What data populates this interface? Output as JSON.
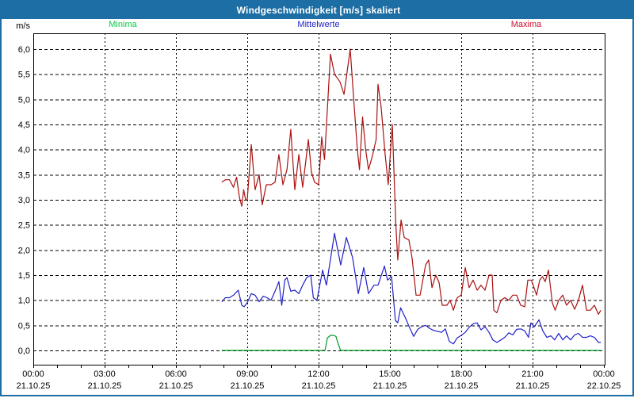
{
  "window": {
    "title": "Windgeschwindigkeit [m/s] skaliert",
    "titlebar_color": "#1c6ea4",
    "border_color": "#1c6ea4",
    "background_color": "#ffffff"
  },
  "chart_data": {
    "type": "line",
    "title": "Windgeschwindigkeit [m/s] skaliert",
    "ylabel": "m/s",
    "ylim": [
      0,
      6
    ],
    "ytick_step": 0.5,
    "ytick_values": [
      0,
      0.5,
      1,
      1.5,
      2,
      2.5,
      3,
      3.5,
      4,
      4.5,
      5,
      5.5,
      6
    ],
    "ytick_labels": [
      "0,0",
      "0,5",
      "1,0",
      "1,5",
      "2,0",
      "2,5",
      "3,0",
      "3,5",
      "4,0",
      "4,5",
      "5,0",
      "5,5",
      "6,0"
    ],
    "x_range_hours": [
      0,
      24
    ],
    "x_minor_tick_hours": 1,
    "x_major_grid_hours": 3,
    "grid_style": "dashed",
    "legend_position": "top",
    "x_labels": [
      {
        "hour": 0,
        "time": "00:00",
        "date": "21.10.25"
      },
      {
        "hour": 3,
        "time": "03:00",
        "date": "21.10.25"
      },
      {
        "hour": 6,
        "time": "06:00",
        "date": "21.10.25"
      },
      {
        "hour": 9,
        "time": "09:00",
        "date": "21.10.25"
      },
      {
        "hour": 12,
        "time": "12:00",
        "date": "21.10.25"
      },
      {
        "hour": 15,
        "time": "15:00",
        "date": "21.10.25"
      },
      {
        "hour": 18,
        "time": "18:00",
        "date": "21.10.25"
      },
      {
        "hour": 21,
        "time": "21:00",
        "date": "21.10.25"
      },
      {
        "hour": 24,
        "time": "00:00",
        "date": "22.10.25"
      }
    ],
    "series": [
      {
        "name": "Minima",
        "color": "#009922",
        "label_color": "#00cc44",
        "points": [
          [
            7.93,
            0
          ],
          [
            12.27,
            0
          ],
          [
            12.37,
            0.25
          ],
          [
            12.5,
            0.3
          ],
          [
            12.63,
            0.3
          ],
          [
            12.73,
            0.28
          ],
          [
            12.83,
            0.12
          ],
          [
            12.93,
            0
          ],
          [
            23.87,
            0
          ]
        ]
      },
      {
        "name": "Mittelwerte",
        "color": "#2020c8",
        "label_color": "#2222cc",
        "points": [
          [
            7.93,
            0.97
          ],
          [
            8.08,
            1.05
          ],
          [
            8.25,
            1.05
          ],
          [
            8.42,
            1.1
          ],
          [
            8.62,
            1.2
          ],
          [
            8.77,
            0.9
          ],
          [
            8.87,
            0.87
          ],
          [
            9,
            0.95
          ],
          [
            9.17,
            1.13
          ],
          [
            9.33,
            1.1
          ],
          [
            9.5,
            0.97
          ],
          [
            9.67,
            1.08
          ],
          [
            9.83,
            1.05
          ],
          [
            10,
            1
          ],
          [
            10.17,
            1.18
          ],
          [
            10.33,
            1.37
          ],
          [
            10.45,
            0.9
          ],
          [
            10.58,
            1.4
          ],
          [
            10.67,
            1.45
          ],
          [
            10.83,
            1.18
          ],
          [
            11,
            1.2
          ],
          [
            11.17,
            1.13
          ],
          [
            11.33,
            1.3
          ],
          [
            11.5,
            1.45
          ],
          [
            11.67,
            1.5
          ],
          [
            11.78,
            1.05
          ],
          [
            11.93,
            1
          ],
          [
            12.17,
            1.6
          ],
          [
            12.33,
            1.3
          ],
          [
            12.67,
            2.33
          ],
          [
            12.93,
            1.7
          ],
          [
            13.17,
            2.25
          ],
          [
            13.43,
            1.85
          ],
          [
            13.67,
            1.13
          ],
          [
            13.9,
            1.65
          ],
          [
            14.1,
            1.13
          ],
          [
            14.33,
            1.3
          ],
          [
            14.5,
            1.3
          ],
          [
            14.77,
            1.68
          ],
          [
            14.9,
            1.4
          ],
          [
            15.07,
            1.47
          ],
          [
            15.23,
            0.6
          ],
          [
            15.33,
            0.55
          ],
          [
            15.45,
            0.85
          ],
          [
            15.67,
            0.63
          ],
          [
            15.83,
            0.45
          ],
          [
            16,
            0.28
          ],
          [
            16.17,
            0.42
          ],
          [
            16.33,
            0.47
          ],
          [
            16.5,
            0.5
          ],
          [
            16.67,
            0.44
          ],
          [
            16.83,
            0.4
          ],
          [
            17,
            0.38
          ],
          [
            17.17,
            0.36
          ],
          [
            17.33,
            0.43
          ],
          [
            17.5,
            0.18
          ],
          [
            17.67,
            0.13
          ],
          [
            17.83,
            0.25
          ],
          [
            18,
            0.3
          ],
          [
            18.17,
            0.36
          ],
          [
            18.33,
            0.46
          ],
          [
            18.5,
            0.53
          ],
          [
            18.67,
            0.55
          ],
          [
            18.83,
            0.41
          ],
          [
            19,
            0.47
          ],
          [
            19.17,
            0.36
          ],
          [
            19.33,
            0.21
          ],
          [
            19.5,
            0.16
          ],
          [
            19.67,
            0.21
          ],
          [
            19.83,
            0.26
          ],
          [
            20,
            0.35
          ],
          [
            20.17,
            0.31
          ],
          [
            20.33,
            0.42
          ],
          [
            20.5,
            0.43
          ],
          [
            20.67,
            0.39
          ],
          [
            20.83,
            0.26
          ],
          [
            20.93,
            0.55
          ],
          [
            21.07,
            0.47
          ],
          [
            21.27,
            0.61
          ],
          [
            21.43,
            0.39
          ],
          [
            21.6,
            0.26
          ],
          [
            21.77,
            0.29
          ],
          [
            21.93,
            0.21
          ],
          [
            22.1,
            0.34
          ],
          [
            22.27,
            0.21
          ],
          [
            22.43,
            0.29
          ],
          [
            22.6,
            0.21
          ],
          [
            22.77,
            0.31
          ],
          [
            22.93,
            0.34
          ],
          [
            23.1,
            0.26
          ],
          [
            23.27,
            0.26
          ],
          [
            23.43,
            0.29
          ],
          [
            23.6,
            0.26
          ],
          [
            23.77,
            0.16
          ],
          [
            23.87,
            0.16
          ]
        ]
      },
      {
        "name": "Maxima",
        "color": "#aa1111",
        "label_color": "#cc1133",
        "points": [
          [
            7.93,
            3.35
          ],
          [
            8.08,
            3.4
          ],
          [
            8.25,
            3.4
          ],
          [
            8.42,
            3.25
          ],
          [
            8.55,
            3.45
          ],
          [
            8.67,
            3.05
          ],
          [
            8.77,
            2.87
          ],
          [
            8.85,
            3.2
          ],
          [
            8.93,
            3
          ],
          [
            9,
            3
          ],
          [
            9.17,
            4.1
          ],
          [
            9.33,
            3.2
          ],
          [
            9.5,
            3.5
          ],
          [
            9.63,
            2.9
          ],
          [
            9.8,
            3.3
          ],
          [
            10,
            3.3
          ],
          [
            10.17,
            3.35
          ],
          [
            10.33,
            3.9
          ],
          [
            10.5,
            3.3
          ],
          [
            10.67,
            3.6
          ],
          [
            10.83,
            4.4
          ],
          [
            11,
            3.2
          ],
          [
            11.17,
            3.9
          ],
          [
            11.33,
            3.25
          ],
          [
            11.57,
            4.2
          ],
          [
            11.7,
            3.55
          ],
          [
            11.83,
            3.35
          ],
          [
            12,
            3.3
          ],
          [
            12.13,
            4.25
          ],
          [
            12.25,
            3.8
          ],
          [
            12.5,
            5.9
          ],
          [
            12.67,
            5.5
          ],
          [
            12.9,
            5.35
          ],
          [
            13.07,
            5.1
          ],
          [
            13.33,
            6
          ],
          [
            13.5,
            4.85
          ],
          [
            13.63,
            4
          ],
          [
            13.72,
            3.6
          ],
          [
            13.85,
            4.65
          ],
          [
            13.98,
            4
          ],
          [
            14.1,
            3.6
          ],
          [
            14.25,
            3.85
          ],
          [
            14.42,
            4.2
          ],
          [
            14.5,
            5.3
          ],
          [
            14.63,
            4.85
          ],
          [
            14.8,
            3.9
          ],
          [
            14.93,
            3.3
          ],
          [
            15.1,
            4.5
          ],
          [
            15.25,
            2.5
          ],
          [
            15.33,
            1.8
          ],
          [
            15.47,
            2.6
          ],
          [
            15.6,
            2.25
          ],
          [
            15.8,
            2.2
          ],
          [
            15.93,
            1.85
          ],
          [
            16.1,
            1.1
          ],
          [
            16.27,
            1.1
          ],
          [
            16.5,
            1.7
          ],
          [
            16.63,
            1.8
          ],
          [
            16.77,
            1.25
          ],
          [
            16.93,
            1.5
          ],
          [
            17.07,
            1.35
          ],
          [
            17.2,
            0.9
          ],
          [
            17.4,
            0.9
          ],
          [
            17.53,
            1
          ],
          [
            17.67,
            0.8
          ],
          [
            17.83,
            1.05
          ],
          [
            18,
            1.1
          ],
          [
            18.17,
            1.65
          ],
          [
            18.33,
            1.25
          ],
          [
            18.5,
            1.4
          ],
          [
            18.67,
            1.2
          ],
          [
            18.83,
            1.3
          ],
          [
            19,
            1.2
          ],
          [
            19.17,
            1.5
          ],
          [
            19.3,
            1.5
          ],
          [
            19.37,
            0.8
          ],
          [
            19.5,
            0.75
          ],
          [
            19.67,
            1
          ],
          [
            19.83,
            1.05
          ],
          [
            20,
            1
          ],
          [
            20.17,
            1.1
          ],
          [
            20.33,
            1.1
          ],
          [
            20.5,
            0.9
          ],
          [
            20.67,
            0.87
          ],
          [
            20.8,
            1.4
          ],
          [
            20.95,
            1.4
          ],
          [
            21.17,
            1.1
          ],
          [
            21.3,
            1.4
          ],
          [
            21.42,
            1.47
          ],
          [
            21.53,
            1.37
          ],
          [
            21.67,
            1.6
          ],
          [
            21.83,
            0.95
          ],
          [
            21.95,
            0.8
          ],
          [
            22.1,
            1
          ],
          [
            22.27,
            1.1
          ],
          [
            22.43,
            0.9
          ],
          [
            22.6,
            1
          ],
          [
            22.77,
            0.82
          ],
          [
            22.93,
            1
          ],
          [
            23.1,
            1.3
          ],
          [
            23.27,
            0.8
          ],
          [
            23.43,
            0.8
          ],
          [
            23.6,
            0.9
          ],
          [
            23.77,
            0.72
          ],
          [
            23.87,
            0.8
          ]
        ]
      }
    ]
  }
}
